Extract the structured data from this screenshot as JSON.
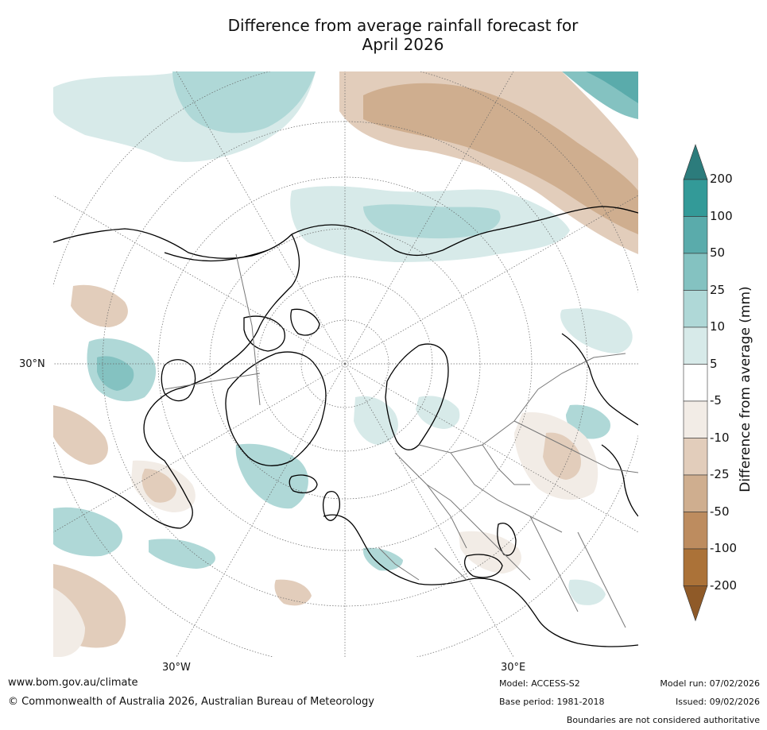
{
  "title": {
    "line1": "Difference from average rainfall forecast for",
    "line2": "April 2026"
  },
  "map": {
    "projection": "north-polar-stereographic",
    "lat_label": "30°N",
    "lon_labels": [
      "30°W",
      "30°E"
    ]
  },
  "colorbar": {
    "label": "Difference from average (mm)",
    "ticks": [
      "200",
      "100",
      "50",
      "25",
      "10",
      "5",
      "-5",
      "-10",
      "-25",
      "-50",
      "-100",
      "-200"
    ],
    "colors": {
      "above_200": "#2c7c7c",
      "100_200": "#339a98",
      "50_100": "#5aabab",
      "25_50": "#84c2c1",
      "10_25": "#afd8d7",
      "5_10": "#d7eae9",
      "minus5_5": "#ffffff",
      "minus10_minus5": "#f2ece6",
      "minus25_minus10": "#e2cdbb",
      "minus50_minus25": "#cfae8f",
      "minus100_minus50": "#bd8c5f",
      "minus200_minus100": "#ab7238",
      "below_minus200": "#8f5a28"
    }
  },
  "footer": {
    "website": "www.bom.gov.au/climate",
    "copyright": "© Commonwealth of Australia 2026, Australian Bureau of Meteorology",
    "model": "Model: ACCESS-S2",
    "base_period": "Base period: 1981-2018",
    "model_run": "Model run: 07/02/2026",
    "issued": "Issued: 09/02/2026",
    "disclaimer": "Boundaries are not considered authoritative"
  }
}
